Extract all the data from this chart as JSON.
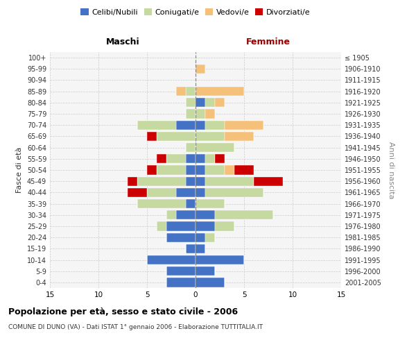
{
  "age_groups": [
    "0-4",
    "5-9",
    "10-14",
    "15-19",
    "20-24",
    "25-29",
    "30-34",
    "35-39",
    "40-44",
    "45-49",
    "50-54",
    "55-59",
    "60-64",
    "65-69",
    "70-74",
    "75-79",
    "80-84",
    "85-89",
    "90-94",
    "95-99",
    "100+"
  ],
  "birth_years": [
    "2001-2005",
    "1996-2000",
    "1991-1995",
    "1986-1990",
    "1981-1985",
    "1976-1980",
    "1971-1975",
    "1966-1970",
    "1961-1965",
    "1956-1960",
    "1951-1955",
    "1946-1950",
    "1941-1945",
    "1936-1940",
    "1931-1935",
    "1926-1930",
    "1921-1925",
    "1916-1920",
    "1911-1915",
    "1906-1910",
    "≤ 1905"
  ],
  "colors": {
    "celibi": "#4472C4",
    "coniugati": "#C5D9A0",
    "vedovi": "#F5C07A",
    "divorziati": "#CC0000"
  },
  "male": {
    "celibi": [
      3,
      3,
      5,
      1,
      3,
      3,
      2,
      1,
      2,
      1,
      1,
      1,
      0,
      0,
      2,
      0,
      0,
      0,
      0,
      0,
      0
    ],
    "coniugati": [
      0,
      0,
      0,
      0,
      0,
      1,
      1,
      5,
      3,
      5,
      3,
      2,
      1,
      4,
      4,
      1,
      1,
      1,
      0,
      0,
      0
    ],
    "vedovi": [
      0,
      0,
      0,
      0,
      0,
      0,
      0,
      0,
      0,
      0,
      0,
      0,
      0,
      0,
      0,
      0,
      0,
      1,
      0,
      0,
      0
    ],
    "divorziati": [
      0,
      0,
      0,
      0,
      0,
      0,
      0,
      0,
      2,
      1,
      1,
      1,
      0,
      1,
      0,
      0,
      0,
      0,
      0,
      0,
      0
    ]
  },
  "female": {
    "nubili": [
      3,
      2,
      5,
      1,
      1,
      2,
      2,
      0,
      1,
      1,
      1,
      1,
      0,
      0,
      1,
      0,
      1,
      0,
      0,
      0,
      0
    ],
    "coniugate": [
      0,
      0,
      0,
      0,
      1,
      2,
      6,
      3,
      6,
      5,
      2,
      1,
      4,
      3,
      2,
      1,
      1,
      0,
      0,
      0,
      0
    ],
    "vedove": [
      0,
      0,
      0,
      0,
      0,
      0,
      0,
      0,
      0,
      0,
      1,
      0,
      0,
      3,
      4,
      1,
      1,
      5,
      0,
      1,
      0
    ],
    "divorziate": [
      0,
      0,
      0,
      0,
      0,
      0,
      0,
      0,
      0,
      3,
      2,
      1,
      0,
      0,
      0,
      0,
      0,
      0,
      0,
      0,
      0
    ]
  },
  "title": "Popolazione per età, sesso e stato civile - 2006",
  "subtitle": "COMUNE DI DUNO (VA) - Dati ISTAT 1° gennaio 2006 - Elaborazione TUTTITALIA.IT",
  "label_maschi": "Maschi",
  "label_femmine": "Femmine",
  "ylabel_left": "Fasce di età",
  "ylabel_right": "Anni di nascita",
  "xlim": 15,
  "bg_color": "#f5f5f5",
  "grid_color": "#cccccc",
  "legend_labels": [
    "Celibi/Nubili",
    "Coniugati/e",
    "Vedovi/e",
    "Divorziati/e"
  ]
}
